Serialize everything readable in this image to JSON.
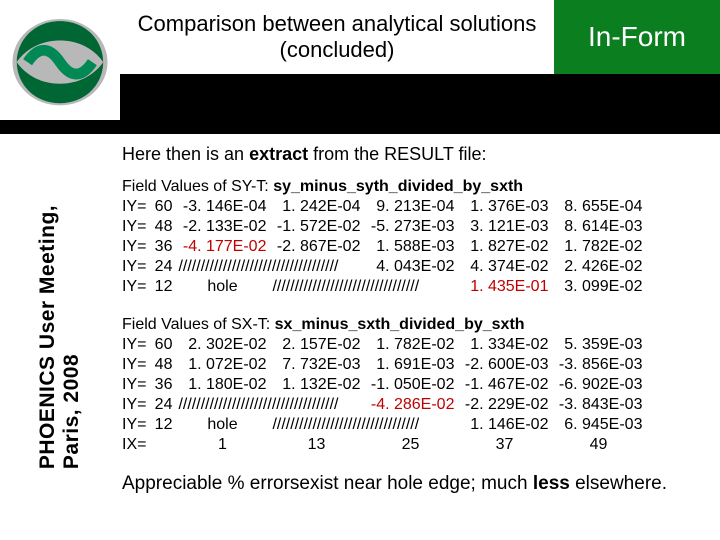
{
  "header": {
    "title": "Comparison between analytical solutions (concluded)",
    "inform": "In-Form"
  },
  "sidebar": {
    "line1": "PHOENICS User Meeting,",
    "line2": "Paris, 2008"
  },
  "intro": {
    "before": "Here then is an ",
    "bold": "extract",
    "after": " from the RESULT file:"
  },
  "block1": {
    "title_prefix": "Field Values of SY-T: ",
    "title_bold": "sy_minus_syth_divided_by_sxth",
    "rows": [
      {
        "iy": "IY=",
        "n": "60",
        "c1": "-3. 146E-04",
        "c2": "1. 242E-04",
        "c3": "9. 213E-04",
        "c4": "1. 376E-03",
        "c5": "8. 655E-04"
      },
      {
        "iy": "IY=",
        "n": "48",
        "c1": "-2. 133E-02",
        "c2": "-1. 572E-02",
        "c3": "-5. 273E-03",
        "c4": "3. 121E-03",
        "c5": "8. 614E-03"
      },
      {
        "iy": "IY=",
        "n": "36",
        "c1": "-4. 177E-02",
        "c1_red": true,
        "c2": "-2. 867E-02",
        "c3": "1. 588E-03",
        "c4": "1. 827E-02",
        "c5": "1. 782E-02"
      },
      {
        "iy": "IY=",
        "n": "24",
        "c1": "////////////////////////////////////",
        "c2": "",
        "c3": "4. 043E-02",
        "c4": "4. 374E-02",
        "c5": "2. 426E-02",
        "c12_span": true
      },
      {
        "iy": "IY=",
        "n": "12",
        "c1": "hole",
        "c1_center": true,
        "c2": "/////////////////////////////////",
        "c3": "",
        "c4": "1. 435E-01",
        "c4_red": true,
        "c5": "3. 099E-02",
        "c23_span": true
      }
    ]
  },
  "block2": {
    "title_prefix": "Field Values of SX-T: ",
    "title_bold": "sx_minus_sxth_divided_by_sxth",
    "rows": [
      {
        "iy": "IY=",
        "n": "60",
        "c1": "2. 302E-02",
        "c2": "2. 157E-02",
        "c3": "1. 782E-02",
        "c4": "1. 334E-02",
        "c5": "5. 359E-03"
      },
      {
        "iy": "IY=",
        "n": "48",
        "c1": "1. 072E-02",
        "c2": "7. 732E-03",
        "c3": "1. 691E-03",
        "c4": "-2. 600E-03",
        "c5": "-3. 856E-03"
      },
      {
        "iy": "IY=",
        "n": "36",
        "c1": "1. 180E-02",
        "c2": "1. 132E-02",
        "c3": "-1. 050E-02",
        "c4": "-1. 467E-02",
        "c5": "-6. 902E-03"
      },
      {
        "iy": "IY=",
        "n": "24",
        "c1": "////////////////////////////////////",
        "c2": "",
        "c3": "-4. 286E-02",
        "c3_red": true,
        "c4": "-2. 229E-02",
        "c5": "-3. 843E-03",
        "c12_span": true
      },
      {
        "iy": "IY=",
        "n": "12",
        "c1": "hole",
        "c1_center": true,
        "c2": "/////////////////////////////////",
        "c3": "",
        "c4": "1. 146E-02",
        "c5": "6. 945E-03",
        "c23_span": true
      }
    ],
    "ix": {
      "label": "IX=",
      "v1": "1",
      "v2": "13",
      "v3": "25",
      "v4": "37",
      "v5": "49"
    }
  },
  "conclusion": {
    "before": "Appreciable % errorsexist near hole edge; much ",
    "bold": "less",
    "after": " elsewhere."
  }
}
